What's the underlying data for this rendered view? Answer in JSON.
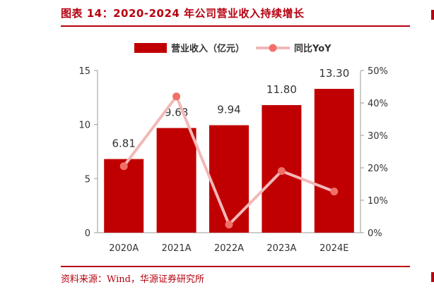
{
  "title": "图表 14：2020-2024 年公司营业收入持续增长",
  "source": "资料来源：Wind，华源证券研究所",
  "colors": {
    "bar": "#c00000",
    "line": "#f2b8b8",
    "marker": "#f07068",
    "accent": "#b5000f"
  },
  "chart_data": {
    "type": "bar",
    "categories": [
      "2020A",
      "2021A",
      "2022A",
      "2023A",
      "2024E"
    ],
    "series": [
      {
        "name": "营业收入（亿元）",
        "type": "bar",
        "axis": "left",
        "values": [
          6.81,
          9.68,
          9.94,
          11.8,
          13.3
        ],
        "labels": [
          "6.81",
          "9.68",
          "9.94",
          "11.80",
          "13.30"
        ]
      },
      {
        "name": "同比YoY",
        "type": "line",
        "axis": "right",
        "values": [
          0.205,
          0.42,
          0.025,
          0.19,
          0.127
        ]
      }
    ],
    "ylim_left": [
      0,
      15
    ],
    "yticks_left": [
      "0",
      "5",
      "10",
      "15"
    ],
    "yticks_left_values": [
      0,
      5,
      10,
      15
    ],
    "ylim_right": [
      0,
      0.5
    ],
    "yticks_right": [
      "0%",
      "10%",
      "20%",
      "30%",
      "40%",
      "50%"
    ],
    "yticks_right_values": [
      0,
      0.1,
      0.2,
      0.3,
      0.4,
      0.5
    ],
    "legend": "top",
    "grid": false
  }
}
